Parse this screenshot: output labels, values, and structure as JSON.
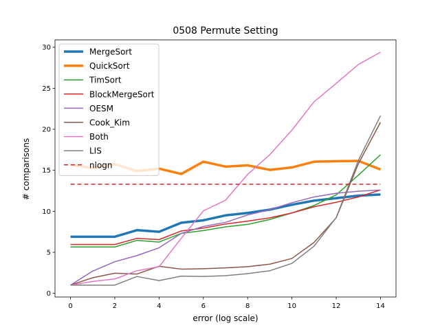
{
  "chart_data": {
    "type": "line",
    "title": "0508 Permute Setting",
    "xlabel": "error (log scale)",
    "ylabel": "# comparisons",
    "xlim": [
      -0.7,
      14.7
    ],
    "ylim": [
      -0.45,
      30.9
    ],
    "xticks": [
      0,
      2,
      4,
      6,
      8,
      10,
      12,
      14
    ],
    "yticks": [
      0,
      5,
      10,
      15,
      20,
      25,
      30
    ],
    "grid": false,
    "legend_position": "top-left",
    "x": [
      0,
      1,
      2,
      3,
      4,
      5,
      6,
      7,
      8,
      9,
      10,
      11,
      12,
      13,
      14
    ],
    "series": [
      {
        "name": "MergeSort",
        "color": "#1f77b4",
        "width": 3.5,
        "dash": "",
        "values": [
          6.9,
          6.9,
          6.9,
          7.7,
          7.5,
          8.6,
          8.9,
          9.5,
          9.8,
          10.2,
          10.8,
          11.3,
          11.6,
          11.9,
          12.05
        ]
      },
      {
        "name": "QuickSort",
        "color": "#ff7f0e",
        "width": 3.5,
        "dash": "",
        "values": [
          15.65,
          15.3,
          15.75,
          14.9,
          15.2,
          14.55,
          16.05,
          15.45,
          15.6,
          15.05,
          15.35,
          16.05,
          16.1,
          16.15,
          15.1
        ]
      },
      {
        "name": "TimSort",
        "color": "#2ca02c",
        "width": 1.5,
        "dash": "",
        "values": [
          5.65,
          5.65,
          5.65,
          6.45,
          6.25,
          7.3,
          7.65,
          8.1,
          8.4,
          9.0,
          9.8,
          10.7,
          12.0,
          14.4,
          16.9
        ]
      },
      {
        "name": "BlockMergeSort",
        "color": "#d62728",
        "width": 1.5,
        "dash": "",
        "values": [
          5.95,
          5.95,
          5.95,
          6.7,
          6.55,
          7.6,
          7.95,
          8.45,
          8.8,
          9.2,
          9.8,
          10.55,
          11.1,
          11.75,
          12.6
        ]
      },
      {
        "name": "OESM",
        "color": "#9467bd",
        "width": 1.5,
        "dash": "",
        "values": [
          1.0,
          2.7,
          3.85,
          4.6,
          5.55,
          7.3,
          8.15,
          8.65,
          9.55,
          10.2,
          11.05,
          11.75,
          12.2,
          12.45,
          12.6
        ]
      },
      {
        "name": "Cook_Kim",
        "color": "#8c564b",
        "width": 1.5,
        "dash": "",
        "values": [
          1.0,
          1.9,
          2.45,
          2.35,
          3.3,
          2.95,
          3.0,
          3.1,
          3.25,
          3.55,
          4.25,
          6.2,
          9.2,
          15.8,
          20.85
        ]
      },
      {
        "name": "Both",
        "color": "#e377c2",
        "width": 1.5,
        "dash": "",
        "values": [
          1.0,
          1.45,
          1.75,
          2.75,
          3.25,
          6.7,
          10.05,
          11.35,
          14.5,
          16.9,
          19.9,
          23.35,
          25.6,
          27.9,
          29.4
        ]
      },
      {
        "name": "LIS",
        "color": "#7f7f7f",
        "width": 1.5,
        "dash": "",
        "values": [
          1.0,
          1.0,
          1.0,
          2.05,
          1.55,
          2.1,
          2.05,
          2.15,
          2.4,
          2.75,
          3.65,
          5.75,
          9.25,
          16.2,
          21.65
        ]
      },
      {
        "name": "nlogn",
        "color": "#d62728",
        "width": 1.5,
        "dash": "6,4",
        "values": [
          13.3,
          13.3,
          13.3,
          13.3,
          13.3,
          13.3,
          13.3,
          13.3,
          13.3,
          13.3,
          13.3,
          13.3,
          13.3,
          13.3,
          13.3
        ]
      }
    ]
  }
}
